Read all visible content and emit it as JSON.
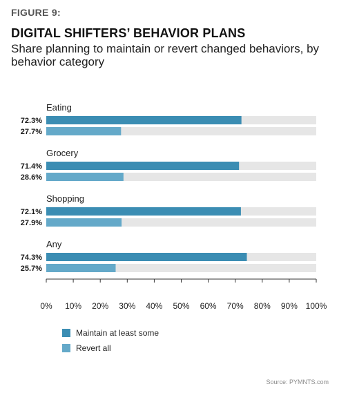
{
  "header": {
    "figure_label": "FIGURE 9:",
    "title": "DIGITAL SHIFTERS’ BEHAVIOR PLANS",
    "subtitle": "Share planning to maintain or revert changed behaviors, by behavior category"
  },
  "colors": {
    "maintain": "#3b8db3",
    "revert": "#64a9c9",
    "track": "#e6e6e6",
    "axis": "#333333"
  },
  "chart_data": {
    "type": "bar",
    "orientation": "horizontal",
    "categories": [
      "Eating",
      "Grocery",
      "Shopping",
      "Any"
    ],
    "series": [
      {
        "name": "Maintain at least some",
        "values": [
          72.3,
          71.4,
          72.1,
          74.3
        ],
        "labels": [
          "72.3%",
          "71.4%",
          "72.1%",
          "74.3%"
        ]
      },
      {
        "name": "Revert all",
        "values": [
          27.7,
          28.6,
          27.9,
          25.7
        ],
        "labels": [
          "27.7%",
          "28.6%",
          "27.9%",
          "25.7%"
        ]
      }
    ],
    "xlim": [
      0,
      100
    ],
    "xticks": [
      "0%",
      "10%",
      "20%",
      "30%",
      "40%",
      "50%",
      "60%",
      "70%",
      "80%",
      "90%",
      "100%"
    ],
    "legend_position": "bottom-left",
    "grid": false
  },
  "source": "Source: PYMNTS.com"
}
